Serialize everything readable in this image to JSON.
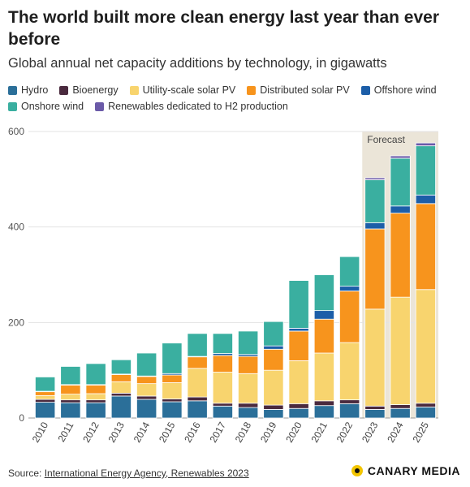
{
  "header": {
    "title": "The world built more clean energy last year than ever before",
    "subtitle": "Global annual net capacity additions by technology, in gigawatts"
  },
  "legend": [
    {
      "name": "Hydro",
      "color": "#2b6f99"
    },
    {
      "name": "Bioenergy",
      "color": "#4a2a3e"
    },
    {
      "name": "Utility-scale solar PV",
      "color": "#f8d46e"
    },
    {
      "name": "Distributed solar PV",
      "color": "#f7941d"
    },
    {
      "name": "Offshore wind",
      "color": "#1c5ea8"
    },
    {
      "name": "Onshore wind",
      "color": "#3aafa0"
    },
    {
      "name": "Renewables dedicated to H2 production",
      "color": "#6b5aa8"
    }
  ],
  "forecast_label": "Forecast",
  "footer": {
    "source_prefix": "Source: ",
    "source_link": "International Energy Agency, Renewables 2023",
    "brand": "CANARY MEDIA"
  },
  "chart_data": {
    "type": "bar",
    "stacked": true,
    "categories": [
      "2010",
      "2011",
      "2012",
      "2013",
      "2014",
      "2015",
      "2016",
      "2017",
      "2018",
      "2019",
      "2020",
      "2021",
      "2022",
      "2023",
      "2024",
      "2025"
    ],
    "forecast_categories": [
      "2023",
      "2024",
      "2025"
    ],
    "ylim": [
      0,
      600
    ],
    "yticks": [
      0,
      200,
      400,
      600
    ],
    "series": [
      {
        "name": "Hydro",
        "color": "#2b6f99",
        "values": [
          33,
          32,
          32,
          46,
          39,
          34,
          36,
          25,
          22,
          18,
          20,
          26,
          30,
          18,
          20,
          23
        ]
      },
      {
        "name": "Bioenergy",
        "color": "#4a2a3e",
        "values": [
          6,
          6,
          6,
          6,
          7,
          6,
          8,
          6,
          9,
          9,
          10,
          10,
          8,
          7,
          8,
          8
        ]
      },
      {
        "name": "Utility-scale solar PV",
        "color": "#f8d46e",
        "values": [
          8,
          12,
          13,
          24,
          26,
          34,
          60,
          65,
          62,
          73,
          90,
          100,
          120,
          203,
          225,
          238
        ]
      },
      {
        "name": "Distributed solar PV",
        "color": "#f7941d",
        "values": [
          8,
          19,
          18,
          15,
          15,
          16,
          24,
          35,
          36,
          44,
          62,
          71,
          108,
          168,
          176,
          180
        ]
      },
      {
        "name": "Offshore wind",
        "color": "#1c5ea8",
        "values": [
          1,
          1,
          1,
          1,
          1,
          3,
          1,
          4,
          4,
          7,
          6,
          18,
          10,
          13,
          15,
          18
        ]
      },
      {
        "name": "Onshore wind",
        "color": "#3aafa0",
        "values": [
          30,
          38,
          44,
          30,
          48,
          64,
          48,
          42,
          49,
          51,
          100,
          75,
          62,
          90,
          100,
          103
        ]
      },
      {
        "name": "Renewables dedicated to H2 production",
        "color": "#6b5aa8",
        "values": [
          0,
          0,
          0,
          0,
          0,
          0,
          0,
          0,
          0,
          0,
          0,
          0,
          0,
          4,
          5,
          6
        ]
      }
    ]
  }
}
